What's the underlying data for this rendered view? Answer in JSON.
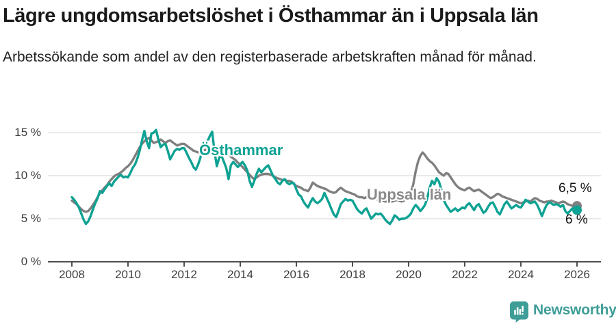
{
  "header": {
    "title": "Lägre ungdomsarbetslöshet i Östhammar än i Uppsala län",
    "subtitle": "Arbetssökande som andel av den registerbaserade arbetskraften månad för månad."
  },
  "colors": {
    "accent_teal": "#0da293",
    "series_gray": "#7f7f7f",
    "series_gray_label": "#8a8a8a",
    "gridline": "#dcdcdc",
    "axis": "#4d4d4d",
    "logo_teal": "#3f9d98"
  },
  "chart_data": {
    "type": "line",
    "title": "Lägre ungdomsarbetslöshet i Östhammar än i Uppsala län",
    "subtitle": "Arbetssökande som andel av den registerbaserade arbetskraften månad för månad.",
    "frequency": "monthly",
    "x_start": "2008-01",
    "x_end": "2026-01",
    "xlabel": "",
    "ylabel": "",
    "ylim": [
      0,
      16
    ],
    "grid": "horizontal",
    "legend_position": "inline-labels",
    "y_ticks": [
      {
        "value": 0,
        "label": "0 %"
      },
      {
        "value": 5,
        "label": "5 %"
      },
      {
        "value": 10,
        "label": "10 %"
      },
      {
        "value": 15,
        "label": "15 %"
      }
    ],
    "x_ticks": [
      {
        "year": 2008,
        "label": "2008"
      },
      {
        "year": 2010,
        "label": "2010"
      },
      {
        "year": 2012,
        "label": "2012"
      },
      {
        "year": 2014,
        "label": "2014"
      },
      {
        "year": 2016,
        "label": "2016"
      },
      {
        "year": 2018,
        "label": "2018"
      },
      {
        "year": 2020,
        "label": "2020"
      },
      {
        "year": 2022,
        "label": "2022"
      },
      {
        "year": 2024,
        "label": "2024"
      },
      {
        "year": 2026,
        "label": "2026"
      }
    ],
    "series": [
      {
        "name": "Östhammar",
        "color": "#0da293",
        "end_value": 6.0,
        "end_label": "6 %",
        "values": [
          7.5,
          7.2,
          6.8,
          6.3,
          5.6,
          4.9,
          4.4,
          4.7,
          5.3,
          6.1,
          6.8,
          7.4,
          8.2,
          8.0,
          8.4,
          8.8,
          9.1,
          8.8,
          9.3,
          9.6,
          9.9,
          10.1,
          9.8,
          9.9,
          9.8,
          10.3,
          10.9,
          11.3,
          12.0,
          12.9,
          14.1,
          15.2,
          14.0,
          13.2,
          14.9,
          15.0,
          15.3,
          14.2,
          13.3,
          13.6,
          13.7,
          12.9,
          11.9,
          12.4,
          12.9,
          13.1,
          13.0,
          13.2,
          13.2,
          12.7,
          12.1,
          11.6,
          11.0,
          10.7,
          11.3,
          12.1,
          13.5,
          13.7,
          14.0,
          14.6,
          15.1,
          12.8,
          11.1,
          12.1,
          12.3,
          11.6,
          10.9,
          9.6,
          11.2,
          11.6,
          11.3,
          11.0,
          11.3,
          11.6,
          11.2,
          10.6,
          9.4,
          8.7,
          9.4,
          10.2,
          10.8,
          10.4,
          10.7,
          11.0,
          11.2,
          10.6,
          10.0,
          9.6,
          9.2,
          9.0,
          9.4,
          9.6,
          9.2,
          9.0,
          9.2,
          9.1,
          8.4,
          7.8,
          7.6,
          7.0,
          6.6,
          6.3,
          6.9,
          7.4,
          7.0,
          6.8,
          7.0,
          7.3,
          8.0,
          7.4,
          6.8,
          6.1,
          5.5,
          5.2,
          5.9,
          6.7,
          7.0,
          7.3,
          7.1,
          7.2,
          7.1,
          6.6,
          6.1,
          5.8,
          5.6,
          6.0,
          6.2,
          5.6,
          5.0,
          5.3,
          5.6,
          5.5,
          5.6,
          5.3,
          4.9,
          4.6,
          4.4,
          4.8,
          5.4,
          5.2,
          4.9,
          5.0,
          5.0,
          5.1,
          5.3,
          5.6,
          6.2,
          6.6,
          6.3,
          5.9,
          6.2,
          6.6,
          7.4,
          8.6,
          9.4,
          9.0,
          9.7,
          9.3,
          8.4,
          7.2,
          6.6,
          6.2,
          5.8,
          6.0,
          6.2,
          5.9,
          6.1,
          6.3,
          6.2,
          6.6,
          6.8,
          6.4,
          6.0,
          6.5,
          6.7,
          6.2,
          5.7,
          5.9,
          6.4,
          6.8,
          6.9,
          6.4,
          5.8,
          5.5,
          6.1,
          6.7,
          7.0,
          6.6,
          6.2,
          6.4,
          6.6,
          6.4,
          6.3,
          6.7,
          7.2,
          7.0,
          6.8,
          6.9,
          7.0,
          6.6,
          6.0,
          5.3,
          6.0,
          6.6,
          6.9,
          6.8,
          6.6,
          6.7,
          6.6,
          6.4,
          6.6,
          5.9,
          5.6,
          5.9,
          6.2,
          6.1,
          6.0
        ]
      },
      {
        "name": "Uppsala län",
        "color": "#7f7f7f",
        "end_value": 6.5,
        "end_label": "6,5 %",
        "values": [
          7.1,
          6.9,
          6.7,
          6.4,
          6.1,
          5.9,
          5.8,
          5.9,
          6.2,
          6.6,
          7.0,
          7.5,
          8.0,
          8.3,
          8.6,
          8.9,
          9.3,
          9.6,
          9.9,
          10.1,
          10.2,
          10.4,
          10.6,
          10.9,
          11.1,
          11.4,
          11.8,
          12.3,
          12.8,
          13.3,
          13.7,
          14.0,
          14.2,
          14.4,
          14.1,
          13.8,
          13.9,
          14.0,
          14.2,
          14.0,
          13.8,
          14.0,
          14.1,
          13.9,
          13.7,
          13.5,
          13.6,
          13.7,
          13.7,
          13.5,
          13.3,
          13.1,
          12.9,
          12.8,
          12.7,
          12.8,
          12.9,
          13.0,
          13.1,
          13.2,
          13.3,
          13.2,
          13.1,
          13.0,
          12.9,
          12.8,
          12.6,
          12.4,
          12.2,
          12.0,
          11.8,
          11.5,
          11.3,
          11.0,
          10.7,
          10.4,
          10.1,
          9.8,
          9.6,
          9.8,
          10.0,
          10.1,
          10.2,
          10.2,
          10.2,
          10.1,
          10.0,
          9.8,
          9.7,
          9.6,
          9.5,
          9.5,
          9.4,
          9.4,
          9.3,
          9.0,
          8.8,
          8.7,
          8.6,
          8.4,
          8.3,
          8.2,
          8.6,
          9.2,
          9.0,
          8.8,
          8.7,
          8.6,
          8.5,
          8.4,
          8.2,
          8.1,
          8.0,
          8.1,
          8.4,
          8.6,
          8.4,
          8.2,
          8.1,
          8.0,
          7.9,
          7.8,
          7.6,
          7.5,
          7.5,
          7.4,
          7.5,
          7.6,
          7.5,
          7.4,
          7.3,
          7.2,
          7.2,
          7.1,
          7.0,
          7.0,
          6.9,
          7.0,
          7.1,
          7.2,
          7.1,
          7.0,
          7.1,
          7.3,
          7.6,
          8.0,
          9.0,
          10.5,
          11.6,
          12.3,
          12.7,
          12.4,
          12.0,
          11.7,
          11.5,
          11.2,
          10.8,
          10.4,
          10.2,
          10.0,
          10.3,
          10.2,
          9.8,
          9.4,
          9.0,
          8.7,
          8.5,
          8.4,
          8.3,
          8.5,
          8.6,
          8.4,
          8.2,
          8.3,
          8.4,
          8.2,
          8.0,
          7.8,
          7.6,
          7.4,
          7.5,
          7.7,
          7.9,
          7.8,
          7.6,
          7.5,
          7.4,
          7.3,
          7.2,
          7.1,
          7.0,
          6.9,
          6.8,
          6.9,
          7.0,
          7.1,
          7.0,
          7.2,
          7.4,
          7.3,
          7.1,
          7.0,
          6.9,
          7.0,
          7.0,
          7.1,
          7.0,
          6.9,
          6.8,
          6.9,
          7.0,
          6.9,
          6.7,
          6.6,
          6.5,
          6.5,
          6.5
        ]
      }
    ]
  },
  "footer": {
    "brand": "Newsworthy"
  }
}
